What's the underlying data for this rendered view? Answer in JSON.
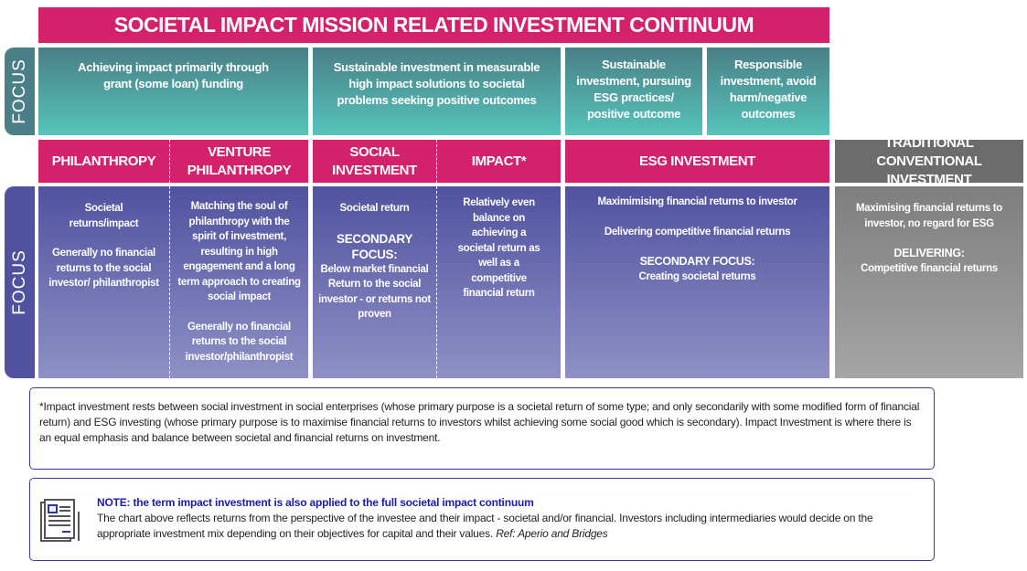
{
  "title": "SOCIETAL IMPACT MISSION RELATED INVESTMENT CONTINUUM",
  "focus_label": "FOCUS",
  "focus_row": [
    "Achieving impact primarily through grant (some loan) funding",
    "Sustainable investment in measurable high impact solutions to societal problems seeking positive outcomes",
    "Sustainable investment, pursuing ESG practices/ positive outcome",
    "Responsible investment, avoid harm/negative outcomes"
  ],
  "categories": [
    "PHILANTHROPY",
    "VENTURE PHILANTHROPY",
    "SOCIAL INVESTMENT",
    "IMPACT*",
    "ESG INVESTMENT",
    "TRADITIONAL CONVENTIONAL INVESTMENT"
  ],
  "details": {
    "philanthropy": [
      "Societal returns/impact",
      "Generally no financial returns to the social investor/ philanthropist"
    ],
    "venture": [
      "Matching the soul of philanthropy with the spirit of investment, resulting in high engagement and a long term approach to creating social impact",
      "Generally no financial returns to the social investor/philanthropist"
    ],
    "social": [
      "Societal return",
      "SECONDARY FOCUS:",
      "Below market financial Return to the social investor - or returns not proven"
    ],
    "impact": [
      "Relatively even balance on achieving a societal return as well as a competitive financial return"
    ],
    "esg": [
      "Maximimising financial returns to investor",
      "Delivering competitive financial returns",
      "SECONDARY FOCUS:",
      "Creating societal returns"
    ],
    "traditional": [
      "Maximising financial returns to investor, no regard for ESG",
      "DELIVERING:",
      "Competitive financial returns"
    ]
  },
  "footnote": "*Impact investment rests between social investment in social enterprises (whose primary purpose is a societal return of some type; and only secondarily with some modified form of financial return) and ESG investing (whose primary purpose is to maximise financial returns to investors whilst achieving some social good which is secondary). Impact Investment is where there is an equal emphasis and balance between societal and financial returns on investment.",
  "note": {
    "title": "NOTE: the term impact investment is also applied to the full societal impact continuum",
    "body": "The chart above reflects returns from the perspective of the investee and their impact - societal and/or financial. Investors including intermediaries would decide on the appropriate investment mix depending on their objectives for capital and their values.",
    "ref": "Ref: Aperio and Bridges"
  },
  "colors": {
    "pink": "#d3216b",
    "teal": "#4a7f87",
    "purple": "#50529f",
    "grey": "#6c6c6c"
  }
}
